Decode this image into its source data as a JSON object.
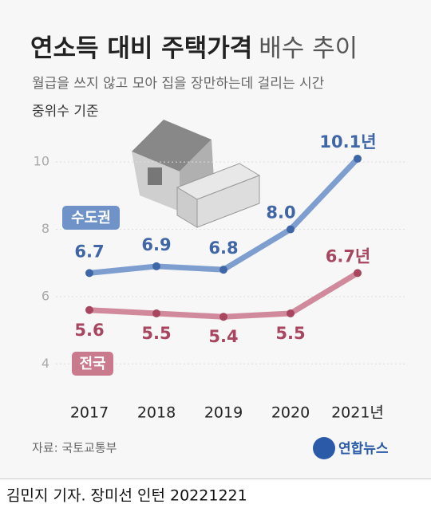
{
  "chart_data": {
    "type": "line",
    "title": "연소득 대비 주택가격",
    "title_suffix": "배수 추이",
    "subtitle": "월급을 쓰지 않고 모아 집을 장만하는데 걸리는 시간",
    "subtitle2": "중위수 기준",
    "categories": [
      "2017",
      "2018",
      "2019",
      "2020",
      "2021년"
    ],
    "series": [
      {
        "name": "수도권",
        "color": "#3f66a6",
        "values": [
          6.7,
          6.9,
          6.8,
          8.0,
          10.1
        ],
        "value_labels": [
          "6.7",
          "6.9",
          "6.8",
          "8.0",
          "10.1년"
        ]
      },
      {
        "name": "전국",
        "color": "#a8455f",
        "values": [
          5.6,
          5.5,
          5.4,
          5.5,
          6.7
        ],
        "value_labels": [
          "5.6",
          "5.5",
          "5.4",
          "5.5",
          "6.7년"
        ]
      }
    ],
    "ylim": [
      3.2,
      11
    ],
    "yticks": [
      4,
      6,
      8,
      10
    ],
    "grid": true,
    "source": "자료: 국토교통부",
    "logo": "연합뉴스",
    "credit": "김민지 기자. 장미선 인턴  20221221"
  }
}
